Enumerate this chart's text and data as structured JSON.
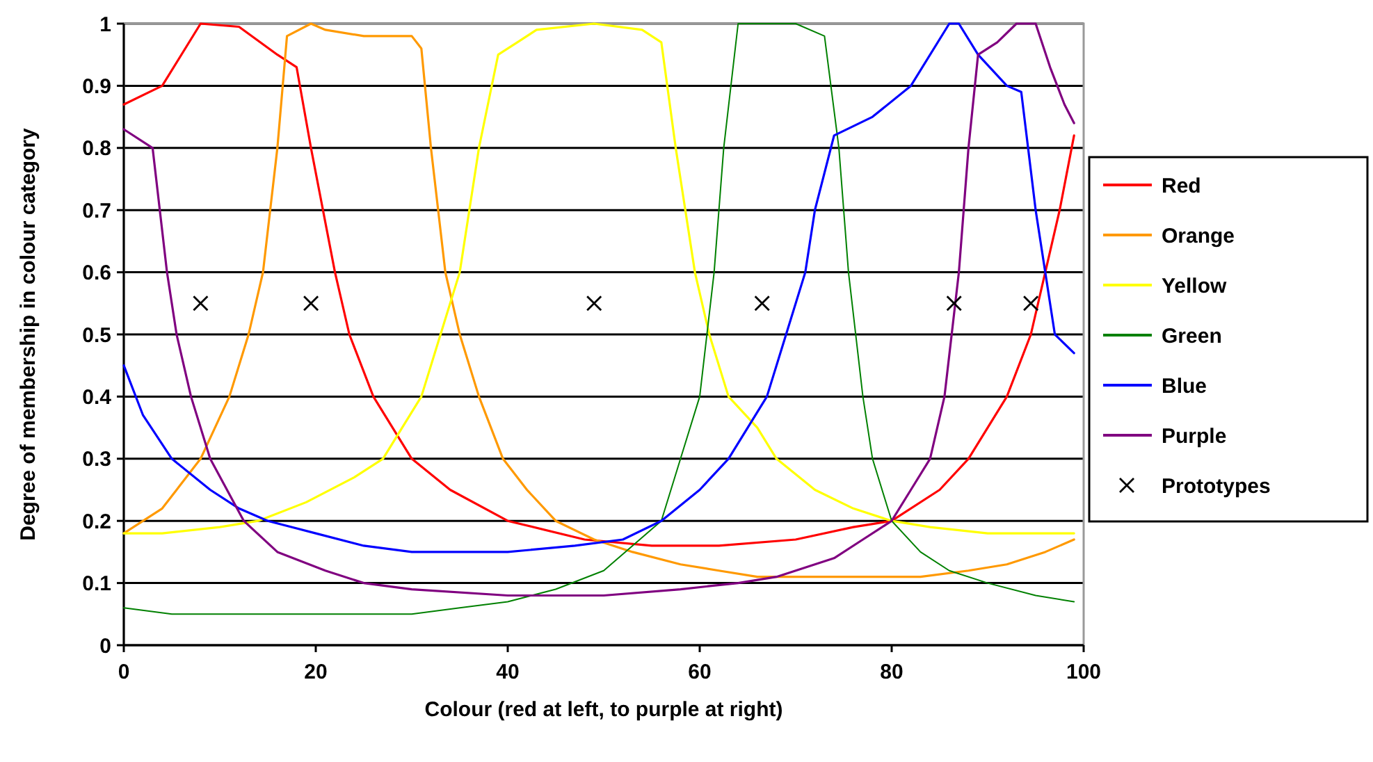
{
  "chart_data": {
    "type": "line",
    "xlabel": "Colour (red at left, to purple at right)",
    "ylabel": "Degree of membership in colour category",
    "xlim": [
      0,
      100
    ],
    "xticks": [
      0,
      20,
      40,
      60,
      80,
      100
    ],
    "ylim": [
      0,
      1
    ],
    "yticks": [
      0,
      0.1,
      0.2,
      0.3,
      0.4,
      0.5,
      0.6,
      0.7,
      0.8,
      0.9,
      1
    ],
    "grid": "y",
    "legend": "right",
    "marker": "none",
    "line_style": "solid",
    "series": [
      {
        "name": "Red",
        "color": "#ff0000",
        "x": [
          0,
          4,
          8,
          12,
          16,
          18,
          19.5,
          22,
          23.5,
          26,
          30,
          34,
          40,
          48,
          55,
          62,
          70,
          76,
          80,
          85,
          88,
          92,
          94.5,
          96,
          97.5,
          99
        ],
        "values": [
          0.87,
          0.9,
          1,
          0.995,
          0.95,
          0.93,
          0.8,
          0.6,
          0.5,
          0.4,
          0.3,
          0.25,
          0.2,
          0.17,
          0.16,
          0.16,
          0.17,
          0.19,
          0.2,
          0.25,
          0.3,
          0.4,
          0.5,
          0.6,
          0.7,
          0.82
        ]
      },
      {
        "name": "Orange",
        "color": "#ff9900",
        "x": [
          0,
          4,
          8,
          11,
          13,
          14.5,
          16,
          17,
          19.5,
          21,
          25,
          30,
          31,
          32,
          33.5,
          35,
          37,
          39.5,
          42,
          45,
          49,
          53,
          58,
          62,
          66,
          75,
          83,
          88,
          92,
          96,
          99
        ],
        "values": [
          0.18,
          0.22,
          0.3,
          0.4,
          0.5,
          0.6,
          0.8,
          0.98,
          1,
          0.99,
          0.98,
          0.98,
          0.96,
          0.8,
          0.6,
          0.5,
          0.4,
          0.3,
          0.25,
          0.2,
          0.17,
          0.15,
          0.13,
          0.12,
          0.11,
          0.11,
          0.11,
          0.12,
          0.13,
          0.15,
          0.17
        ]
      },
      {
        "name": "Yellow",
        "color": "#ffff00",
        "x": [
          0,
          4,
          10,
          14,
          19,
          24,
          27,
          31,
          33,
          35,
          37,
          39,
          41,
          43,
          49,
          54,
          56,
          57.5,
          59.5,
          61,
          63,
          66,
          68,
          72,
          76,
          80,
          84,
          90,
          96,
          99
        ],
        "values": [
          0.18,
          0.18,
          0.19,
          0.2,
          0.23,
          0.27,
          0.3,
          0.4,
          0.5,
          0.6,
          0.8,
          0.95,
          0.97,
          0.99,
          1,
          0.99,
          0.97,
          0.8,
          0.6,
          0.5,
          0.4,
          0.35,
          0.3,
          0.25,
          0.22,
          0.2,
          0.19,
          0.18,
          0.18,
          0.18
        ]
      },
      {
        "name": "Green",
        "color": "#008000",
        "x": [
          0,
          5,
          10,
          30,
          35,
          40,
          45,
          50,
          53,
          56,
          58,
          60,
          61.5,
          62.5,
          64,
          70,
          73,
          74.5,
          75.5,
          77,
          78,
          80,
          83,
          86,
          90,
          95,
          99
        ],
        "values": [
          0.06,
          0.05,
          0.05,
          0.05,
          0.06,
          0.07,
          0.09,
          0.12,
          0.16,
          0.2,
          0.3,
          0.4,
          0.6,
          0.8,
          1,
          1,
          0.98,
          0.8,
          0.6,
          0.4,
          0.3,
          0.2,
          0.15,
          0.12,
          0.1,
          0.08,
          0.07
        ]
      },
      {
        "name": "Blue",
        "color": "#0000ff",
        "x": [
          0,
          2,
          5,
          9,
          12,
          15,
          20,
          25,
          30,
          40,
          47,
          52,
          56,
          60,
          63,
          65,
          67,
          69,
          71,
          72,
          74,
          78,
          82,
          86,
          87,
          89,
          92,
          93.5,
          95,
          97,
          99
        ],
        "values": [
          0.45,
          0.37,
          0.3,
          0.25,
          0.22,
          0.2,
          0.18,
          0.16,
          0.15,
          0.15,
          0.16,
          0.17,
          0.2,
          0.25,
          0.3,
          0.35,
          0.4,
          0.5,
          0.6,
          0.7,
          0.82,
          0.85,
          0.9,
          1,
          1,
          0.95,
          0.9,
          0.89,
          0.7,
          0.5,
          0.47
        ]
      },
      {
        "name": "Purple",
        "color": "#800080",
        "x": [
          0,
          3,
          4.5,
          5.5,
          7,
          9,
          12.5,
          16,
          21,
          25,
          30,
          40,
          50,
          58,
          64,
          68,
          74,
          77,
          80,
          82,
          84,
          85.5,
          87,
          88,
          89,
          91,
          93,
          95,
          96.5,
          98,
          99
        ],
        "values": [
          0.83,
          0.8,
          0.6,
          0.5,
          0.4,
          0.3,
          0.2,
          0.15,
          0.12,
          0.1,
          0.09,
          0.08,
          0.08,
          0.09,
          0.1,
          0.11,
          0.14,
          0.17,
          0.2,
          0.25,
          0.3,
          0.4,
          0.6,
          0.8,
          0.95,
          0.97,
          1,
          1,
          0.93,
          0.87,
          0.84
        ]
      },
      {
        "name": "Prototypes",
        "type": "scatter",
        "marker": "cross",
        "color": "#000000",
        "x": [
          8,
          19.5,
          49,
          66.5,
          86.5,
          94.5
        ],
        "values": [
          0.55,
          0.55,
          0.55,
          0.55,
          0.55,
          0.55
        ]
      }
    ]
  }
}
